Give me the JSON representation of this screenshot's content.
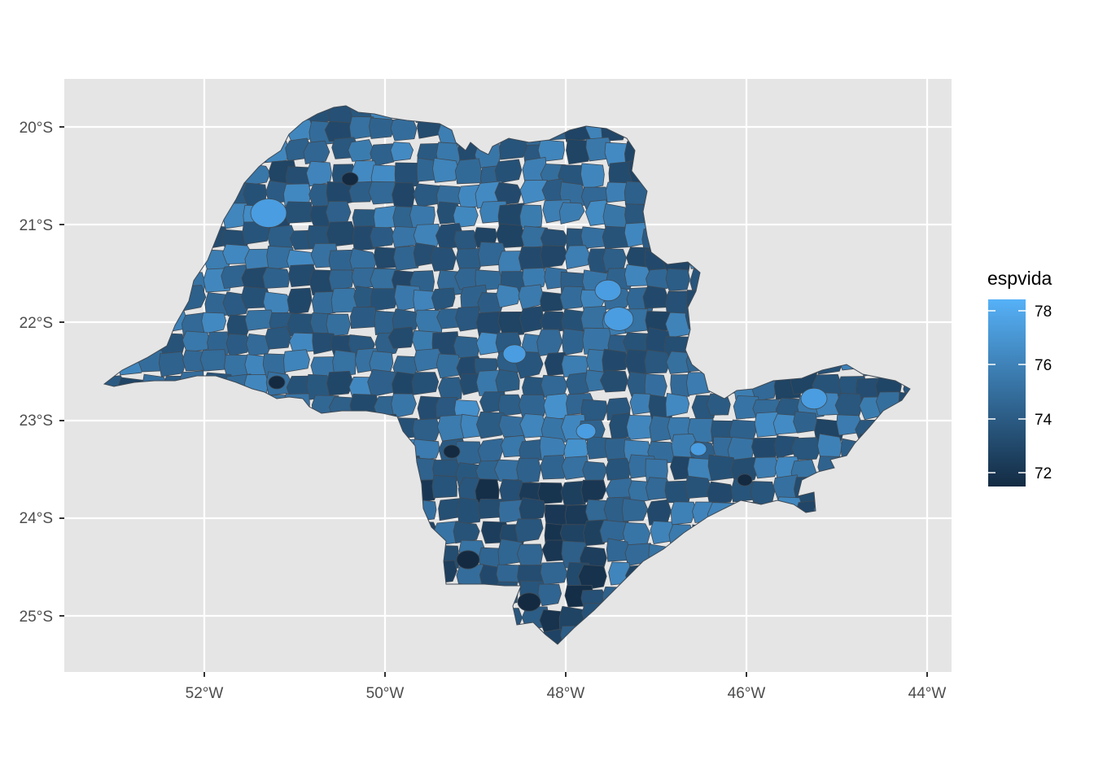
{
  "map": {
    "legend_title": "espvida",
    "x_ticks": [
      "52°W",
      "50°W",
      "48°W",
      "46°W",
      "44°W"
    ],
    "y_ticks": [
      "20°S",
      "21°S",
      "22°S",
      "23°S",
      "24°S",
      "25°S"
    ],
    "legend_ticks": [
      "72",
      "74",
      "76",
      "78"
    ],
    "colors": {
      "panel_background": "#e5e5e5",
      "grid_major": "#ffffff",
      "region_border": "#3f4a55",
      "scale_low": "#132b43",
      "scale_high": "#56b1f7"
    },
    "fill_scale_range": [
      71.4,
      78.4
    ],
    "region_count_note": null
  }
}
